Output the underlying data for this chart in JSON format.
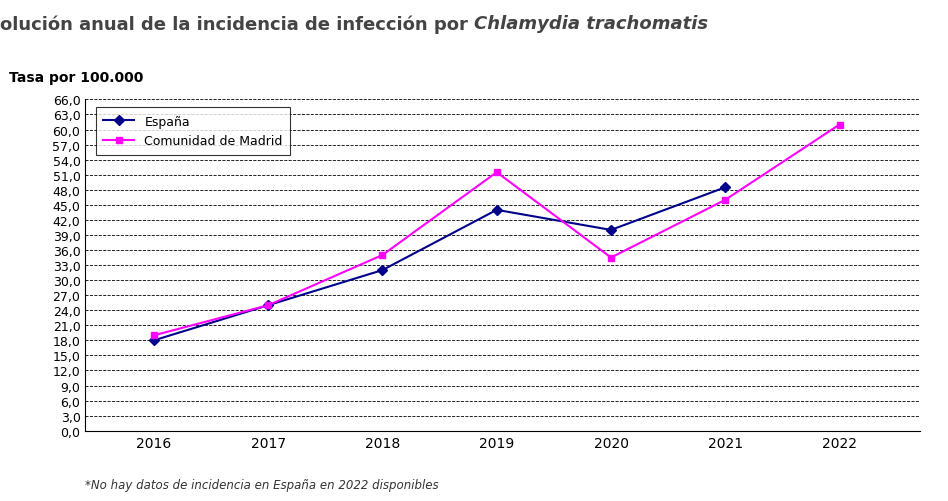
{
  "title_normal": "Evolución anual de la incidencia de infección por ",
  "title_italic": "Chlamydia trachomatis",
  "ylabel": "Tasa por 100.000",
  "footnote": "*No hay datos de incidencia en España en 2022 disponibles",
  "years": [
    2016,
    2017,
    2018,
    2019,
    2020,
    2021,
    2022
  ],
  "espana": [
    18.0,
    25.0,
    32.0,
    44.0,
    40.0,
    48.5,
    null
  ],
  "madrid": [
    19.0,
    25.0,
    35.0,
    51.5,
    34.5,
    46.0,
    61.0
  ],
  "color_espana": "#00008B",
  "color_madrid": "#FF00FF",
  "ylim_min": 0.0,
  "ylim_max": 66.0,
  "ytick_step": 3.0,
  "background_color": "#FFFFFF",
  "grid_color": "#000000",
  "legend_labels": [
    "España",
    "Comunidad de Madrid"
  ],
  "title_fontsize": 13,
  "axis_fontsize": 9,
  "legend_fontsize": 9,
  "footnote_fontsize": 8.5
}
